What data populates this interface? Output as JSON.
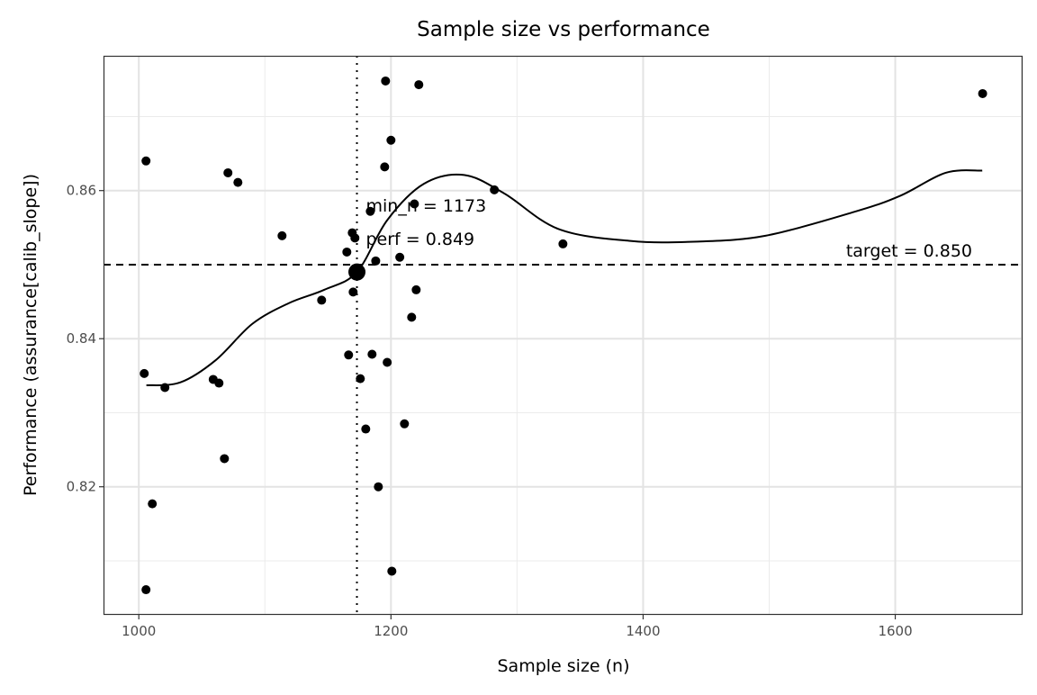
{
  "chart_data": {
    "type": "scatter",
    "title": "Sample size vs performance",
    "xlabel": "Sample size (n)",
    "ylabel": "Performance (assurance[calib_slope])",
    "xlim": [
      972,
      1701
    ],
    "ylim": [
      0.8027,
      0.8782
    ],
    "x_ticks": [
      1000,
      1200,
      1400,
      1600
    ],
    "x_tick_labels": [
      "1000",
      "1200",
      "1400",
      "1600"
    ],
    "x_minor": [
      1100,
      1300,
      1500,
      1700
    ],
    "y_ticks": [
      0.82,
      0.84,
      0.86
    ],
    "y_tick_labels": [
      "0.82",
      "0.84",
      "0.86"
    ],
    "y_minor": [
      0.81,
      0.83,
      0.85,
      0.87
    ],
    "grid": true,
    "points": [
      [
        1005.7,
        0.864
      ],
      [
        1070.7,
        0.8624
      ],
      [
        1078.6,
        0.8611
      ],
      [
        1113.6,
        0.8539
      ],
      [
        1145,
        0.8452
      ],
      [
        1004.3,
        0.8353
      ],
      [
        1020.7,
        0.8334
      ],
      [
        1059,
        0.8345
      ],
      [
        1063.6,
        0.834
      ],
      [
        1067.9,
        0.8238
      ],
      [
        1010.7,
        0.8177
      ],
      [
        1005.7,
        0.8061
      ],
      [
        1195.7,
        0.8748
      ],
      [
        1222.1,
        0.8743
      ],
      [
        1200,
        0.8668
      ],
      [
        1195,
        0.8632
      ],
      [
        1218.6,
        0.8582
      ],
      [
        1183.6,
        0.8572
      ],
      [
        1169.3,
        0.8543
      ],
      [
        1171.4,
        0.8536
      ],
      [
        1165,
        0.8517
      ],
      [
        1187.9,
        0.8505
      ],
      [
        1207,
        0.851
      ],
      [
        1170,
        0.8463
      ],
      [
        1220,
        0.8466
      ],
      [
        1216.4,
        0.8429
      ],
      [
        1166.4,
        0.8378
      ],
      [
        1185,
        0.8379
      ],
      [
        1197,
        0.8368
      ],
      [
        1175.7,
        0.8346
      ],
      [
        1210.7,
        0.8285
      ],
      [
        1180,
        0.8278
      ],
      [
        1190,
        0.82
      ],
      [
        1200.7,
        0.8086
      ],
      [
        1282,
        0.8601
      ],
      [
        1336.4,
        0.8528
      ],
      [
        1669.3,
        0.8731
      ]
    ],
    "smooth": [
      [
        1006,
        0.8337
      ],
      [
        1033,
        0.8341
      ],
      [
        1061,
        0.8371
      ],
      [
        1090,
        0.842
      ],
      [
        1119,
        0.8448
      ],
      [
        1147,
        0.8466
      ],
      [
        1173,
        0.849
      ],
      [
        1197,
        0.856
      ],
      [
        1226,
        0.8609
      ],
      [
        1258,
        0.8621
      ],
      [
        1290,
        0.8596
      ],
      [
        1333,
        0.8548
      ],
      [
        1390,
        0.8532
      ],
      [
        1440,
        0.8531
      ],
      [
        1497,
        0.8539
      ],
      [
        1569,
        0.8572
      ],
      [
        1604,
        0.8593
      ],
      [
        1640,
        0.8624
      ],
      [
        1669,
        0.8627
      ]
    ],
    "highlight": {
      "x": 1173,
      "y": 0.849
    },
    "target": 0.85,
    "min_n": 1173,
    "annotations": {
      "min_n": "min_n = 1173",
      "perf": "perf = 0.849",
      "target": "target = 0.850"
    }
  }
}
